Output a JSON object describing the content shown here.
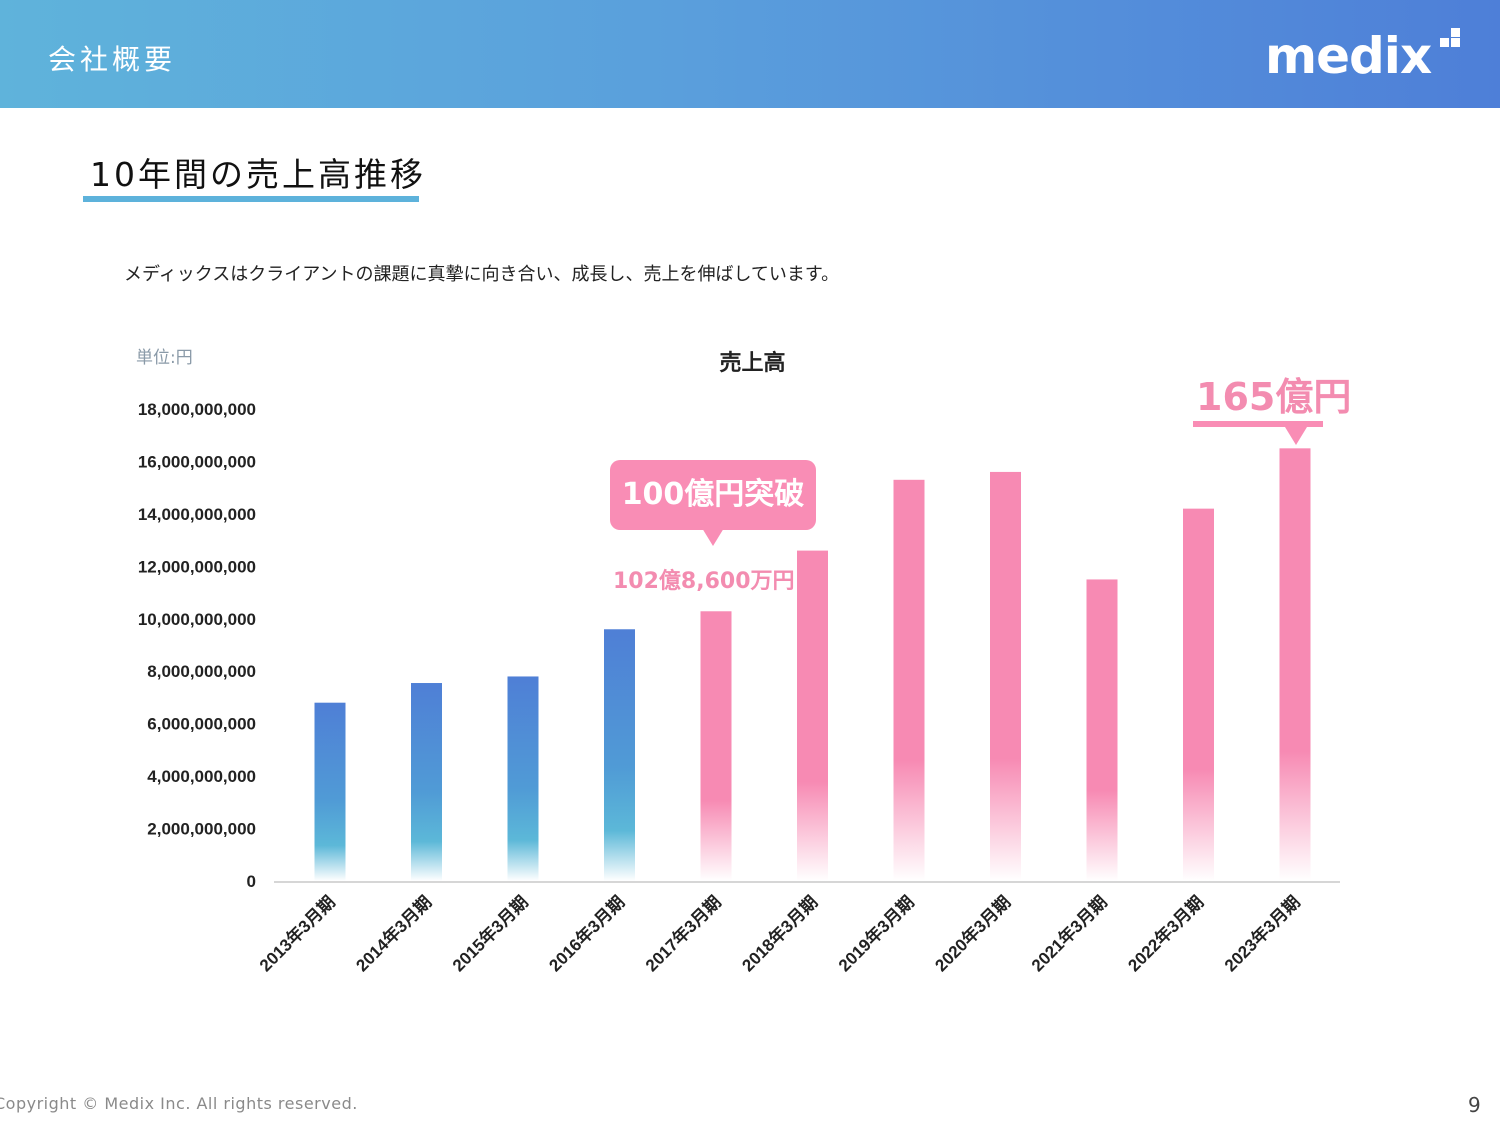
{
  "header": {
    "title": "会社概要",
    "logo_text": "medix"
  },
  "section": {
    "title": "10年間の売上高推移"
  },
  "intro_text": "メディックスはクライアントの課題に真摯に向き合い、成長し、売上を伸ばしています。",
  "unit_label": "単位:円",
  "callouts": {
    "milestone_label": "100億円突破",
    "milestone_value": "102億8,600万円",
    "latest_value": "165億円"
  },
  "footer": {
    "copyright": "Copyright © Medix Inc. All rights reserved.",
    "page_number": "9"
  },
  "colors": {
    "header_gradient_start": "#5fb3db",
    "header_gradient_end": "#4e7fd8",
    "accent_blue": "#4e7fd8",
    "accent_pink": "#f98db5"
  },
  "chart_data": {
    "type": "bar",
    "title": "売上高",
    "xlabel": "",
    "ylabel": "",
    "ylim": [
      0,
      18000000000
    ],
    "yticks": [
      0,
      2000000000,
      4000000000,
      6000000000,
      8000000000,
      10000000000,
      12000000000,
      14000000000,
      16000000000,
      18000000000
    ],
    "ytick_labels": [
      "0",
      "2,000,000,000",
      "4,000,000,000",
      "6,000,000,000",
      "8,000,000,000",
      "10,000,000,000",
      "12,000,000,000",
      "14,000,000,000",
      "16,000,000,000",
      "18,000,000,000"
    ],
    "categories": [
      "2013年3月期",
      "2014年3月期",
      "2015年3月期",
      "2016年3月期",
      "2017年3月期",
      "2018年3月期",
      "2019年3月期",
      "2020年3月期",
      "2021年3月期",
      "2022年3月期",
      "2023年3月期"
    ],
    "values": [
      6800000000,
      7550000000,
      7800000000,
      9600000000,
      10286000000,
      12600000000,
      15300000000,
      15600000000,
      11500000000,
      14200000000,
      16500000000
    ],
    "bar_colors": [
      "blue",
      "blue",
      "blue",
      "blue",
      "pink",
      "pink",
      "pink",
      "pink",
      "pink",
      "pink",
      "pink"
    ],
    "grid": false,
    "legend": "none"
  }
}
